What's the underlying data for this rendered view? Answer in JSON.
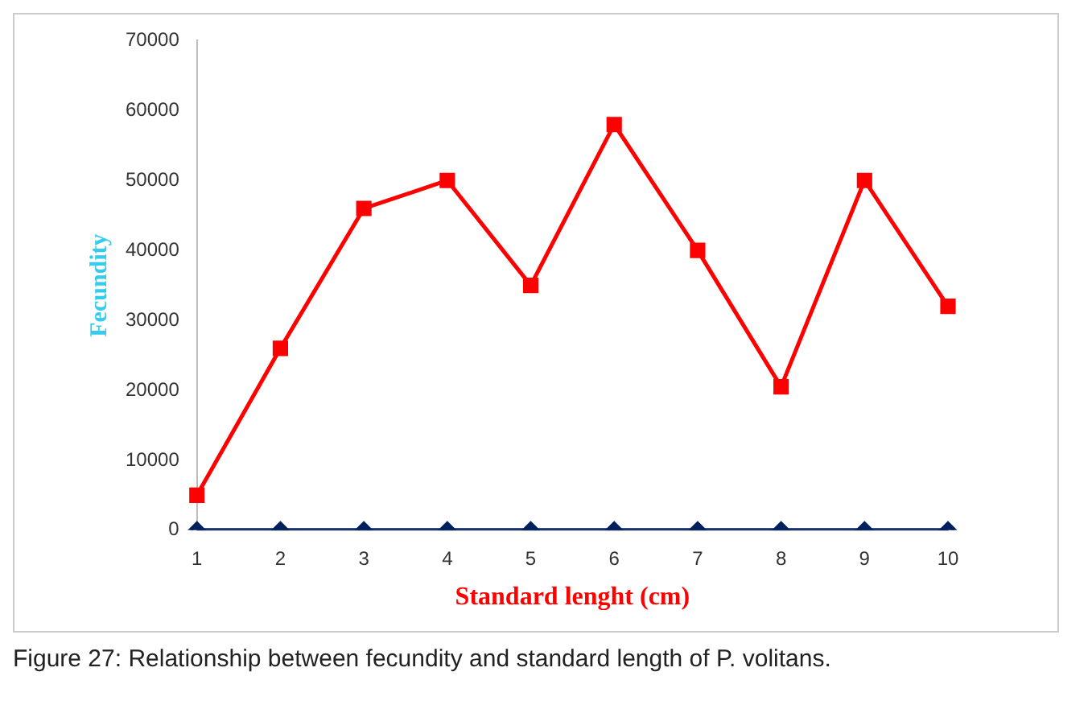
{
  "chart_data": {
    "type": "line",
    "xlabel": "Standard lenght (cm)",
    "ylabel": "Fecundity",
    "categories": [
      "1",
      "2",
      "3",
      "4",
      "5",
      "6",
      "7",
      "8",
      "9",
      "10"
    ],
    "series": [
      {
        "color": "#ff0000",
        "marker": "square",
        "values": [
          5000,
          26000,
          46000,
          50000,
          35000,
          58000,
          40000,
          20500,
          50000,
          32000
        ]
      },
      {
        "color": "#002060",
        "marker": "diamond",
        "values": [
          0,
          0,
          0,
          0,
          0,
          0,
          0,
          0,
          0,
          0
        ]
      }
    ],
    "ylim": [
      0,
      70000
    ],
    "yticks": [
      0,
      10000,
      20000,
      30000,
      40000,
      50000,
      60000,
      70000
    ],
    "grid": false,
    "legend": false,
    "annotations": [
      "Figure 27: Relationship between fecundity and standard length of P. volitans."
    ]
  }
}
